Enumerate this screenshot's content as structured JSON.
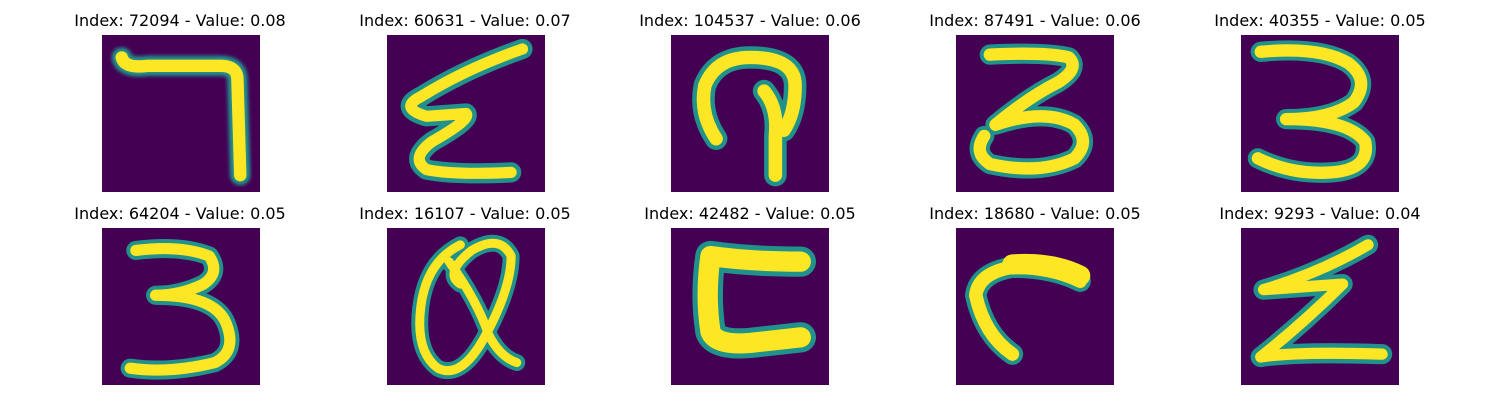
{
  "figure": {
    "colormap": "viridis",
    "background_color": "#ffffff",
    "digit_background_color": "#440154",
    "stroke_color": "#fde725",
    "panels": [
      {
        "title": "Index: 72094 - Value: 0.08",
        "index": 72094,
        "value": 0.08,
        "glyph": "7-like stroke (horizontal bar top, vertical drop right)"
      },
      {
        "title": "Index: 60631 - Value: 0.07",
        "index": 60631,
        "value": 0.07,
        "glyph": "zigzag / Σ-like stroke"
      },
      {
        "title": "Index: 104537 - Value: 0.06",
        "index": 104537,
        "value": 0.06,
        "glyph": "looped hook stroke"
      },
      {
        "title": "Index: 87491 - Value: 0.06",
        "index": 87491,
        "value": 0.06,
        "glyph": "digit 3"
      },
      {
        "title": "Index: 40355 - Value: 0.05",
        "index": 40355,
        "value": 0.05,
        "glyph": "digit 3"
      },
      {
        "title": "Index: 64204 - Value: 0.05",
        "index": 64204,
        "value": 0.05,
        "glyph": "digit 3"
      },
      {
        "title": "Index: 16107 - Value: 0.05",
        "index": 16107,
        "value": 0.05,
        "glyph": "looped Q-like stroke"
      },
      {
        "title": "Index: 42482 - Value: 0.05",
        "index": 42482,
        "value": 0.05,
        "glyph": "thick C / bracket stroke"
      },
      {
        "title": "Index: 18680 - Value: 0.05",
        "index": 18680,
        "value": 0.05,
        "glyph": "curved hook stroke"
      },
      {
        "title": "Index: 9293 - Value: 0.04",
        "index": 9293,
        "value": 0.04,
        "glyph": "Z-like zigzag stroke"
      }
    ]
  }
}
